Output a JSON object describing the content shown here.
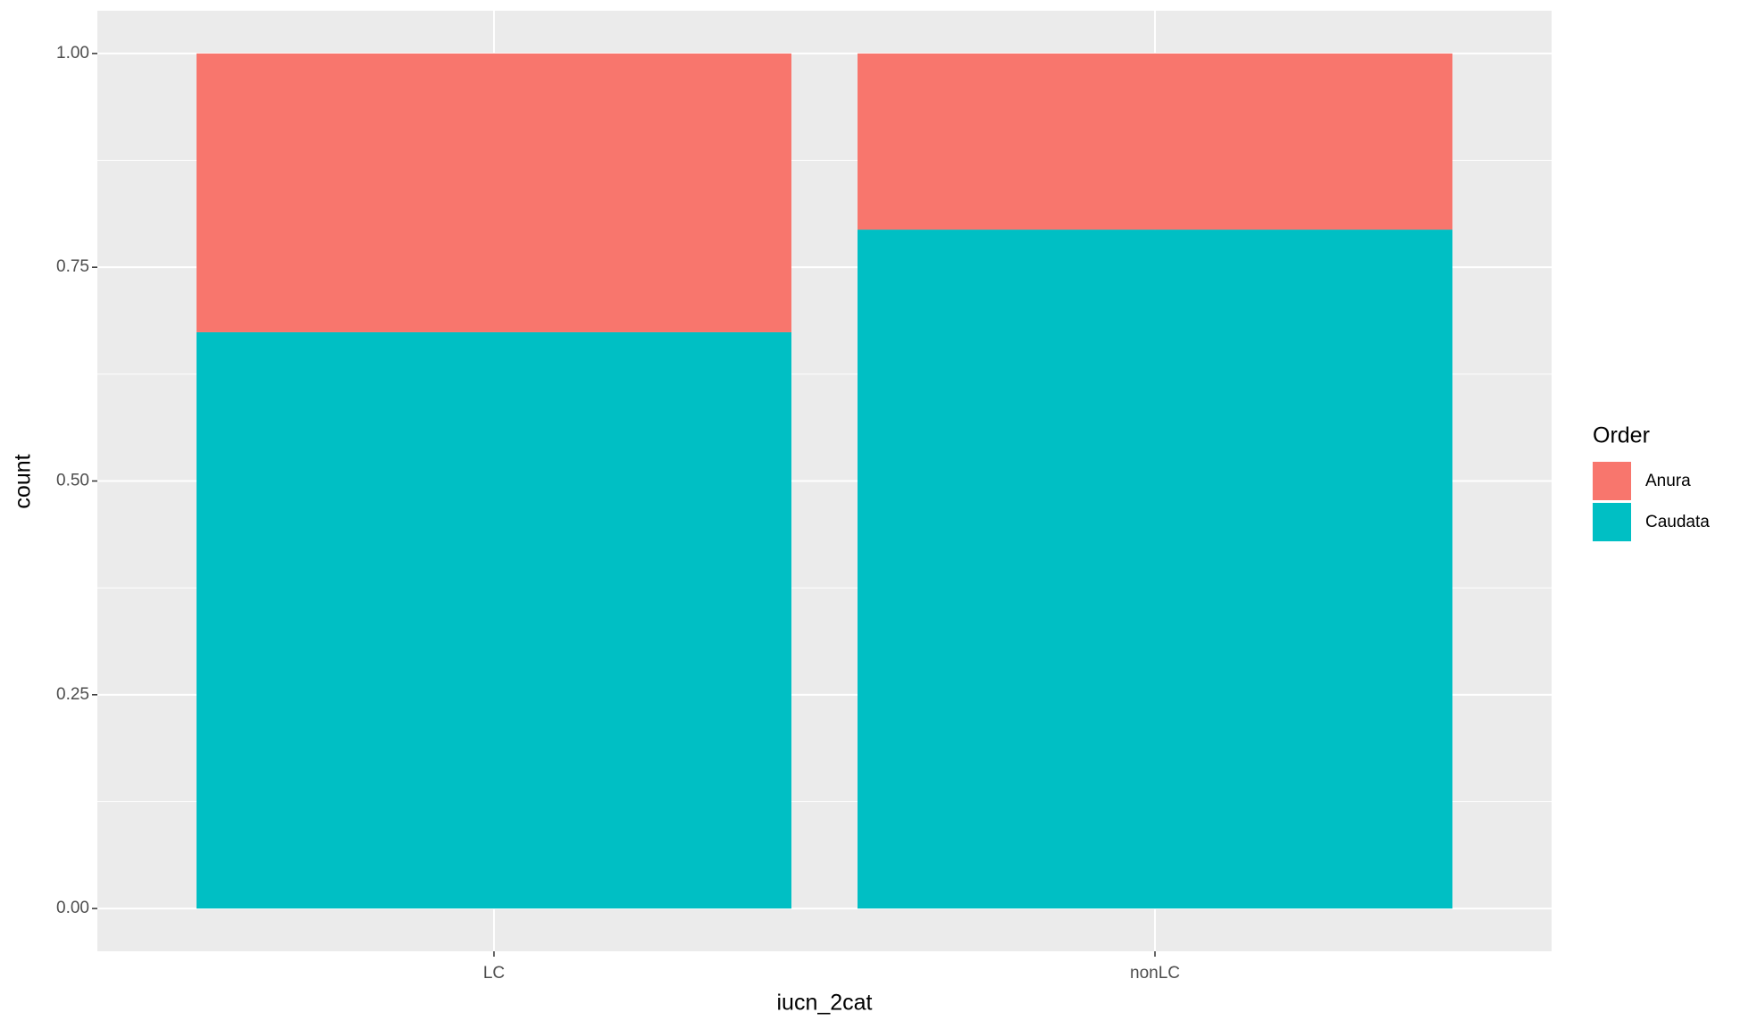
{
  "chart_data": {
    "type": "stacked_bar",
    "x_label": "iucn_2cat",
    "y_label": "count",
    "categories": [
      "LC",
      "nonLC"
    ],
    "series": [
      {
        "name": "Anura",
        "color": "#f8766d",
        "values": [
          0.326,
          0.206
        ]
      },
      {
        "name": "Caudata",
        "color": "#00bfc4",
        "values": [
          0.674,
          0.794
        ]
      }
    ],
    "stack_order": "bottom_last",
    "ylim": [
      -0.05,
      1.05
    ],
    "yticks": [
      {
        "value": 0,
        "label": "0.00"
      },
      {
        "value": 0.25,
        "label": "0.25"
      },
      {
        "value": 0.5,
        "label": "0.50"
      },
      {
        "value": 0.75,
        "label": "0.75"
      },
      {
        "value": 1,
        "label": "1.00"
      }
    ],
    "grid": true,
    "legend": {
      "title": "Order",
      "position": "right"
    }
  }
}
